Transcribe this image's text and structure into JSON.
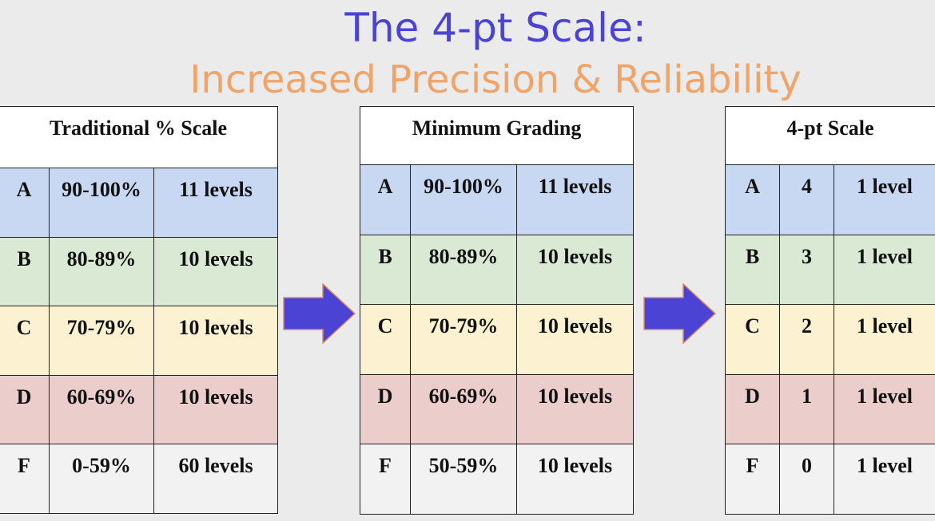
{
  "title_line1": "The 4-pt Scale:",
  "title_line2": "Increased Precision & Reliability",
  "colors": {
    "title_line1": "#4a43d4",
    "title_line2": "#efa46a",
    "arrow": "#4a43d4",
    "row_A": "#c9d8f2",
    "row_B": "#d9e9d3",
    "row_C": "#fcf2d2",
    "row_D": "#ebcdcc",
    "row_F": "#f2f2f2"
  },
  "tables": [
    {
      "header": "Traditional % Scale",
      "rows": [
        [
          "A",
          "90-100%",
          "11 levels"
        ],
        [
          "B",
          "80-89%",
          "10 levels"
        ],
        [
          "C",
          "70-79%",
          "10 levels"
        ],
        [
          "D",
          "60-69%",
          "10 levels"
        ],
        [
          "F",
          "0-59%",
          "60 levels"
        ]
      ]
    },
    {
      "header": "Minimum Grading",
      "rows": [
        [
          "A",
          "90-100%",
          "11 levels"
        ],
        [
          "B",
          "80-89%",
          "10 levels"
        ],
        [
          "C",
          "70-79%",
          "10 levels"
        ],
        [
          "D",
          "60-69%",
          "10 levels"
        ],
        [
          "F",
          "50-59%",
          "10 levels"
        ]
      ]
    },
    {
      "header": "4-pt Scale",
      "rows": [
        [
          "A",
          "4",
          "1 level"
        ],
        [
          "B",
          "3",
          "1 level"
        ],
        [
          "C",
          "2",
          "1 level"
        ],
        [
          "D",
          "1",
          "1 level"
        ],
        [
          "F",
          "0",
          "1 level"
        ]
      ]
    }
  ],
  "arrow_icon": "right-arrow-icon"
}
